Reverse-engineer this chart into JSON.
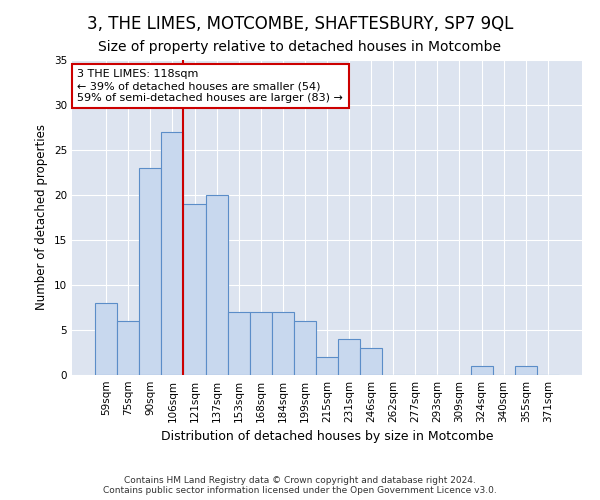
{
  "title": "3, THE LIMES, MOTCOMBE, SHAFTESBURY, SP7 9QL",
  "subtitle": "Size of property relative to detached houses in Motcombe",
  "xlabel": "Distribution of detached houses by size in Motcombe",
  "ylabel": "Number of detached properties",
  "categories": [
    "59sqm",
    "75sqm",
    "90sqm",
    "106sqm",
    "121sqm",
    "137sqm",
    "153sqm",
    "168sqm",
    "184sqm",
    "199sqm",
    "215sqm",
    "231sqm",
    "246sqm",
    "262sqm",
    "277sqm",
    "293sqm",
    "309sqm",
    "324sqm",
    "340sqm",
    "355sqm",
    "371sqm"
  ],
  "values": [
    8,
    6,
    23,
    27,
    19,
    20,
    7,
    7,
    7,
    6,
    2,
    4,
    3,
    0,
    0,
    0,
    0,
    1,
    0,
    1,
    0
  ],
  "bar_color": "#c8d8ee",
  "bar_edge_color": "#5b8dc8",
  "vline_x_index": 3.5,
  "vline_color": "#cc0000",
  "annotation_text": "3 THE LIMES: 118sqm\n← 39% of detached houses are smaller (54)\n59% of semi-detached houses are larger (83) →",
  "annotation_box_color": "#ffffff",
  "annotation_box_edge": "#cc0000",
  "ylim": [
    0,
    35
  ],
  "yticks": [
    0,
    5,
    10,
    15,
    20,
    25,
    30,
    35
  ],
  "background_color": "#dde4f0",
  "grid_color": "#ffffff",
  "footer_text": "Contains HM Land Registry data © Crown copyright and database right 2024.\nContains public sector information licensed under the Open Government Licence v3.0.",
  "title_fontsize": 12,
  "subtitle_fontsize": 10,
  "xlabel_fontsize": 9,
  "ylabel_fontsize": 8.5,
  "tick_fontsize": 7.5,
  "annotation_fontsize": 8,
  "footer_fontsize": 6.5
}
